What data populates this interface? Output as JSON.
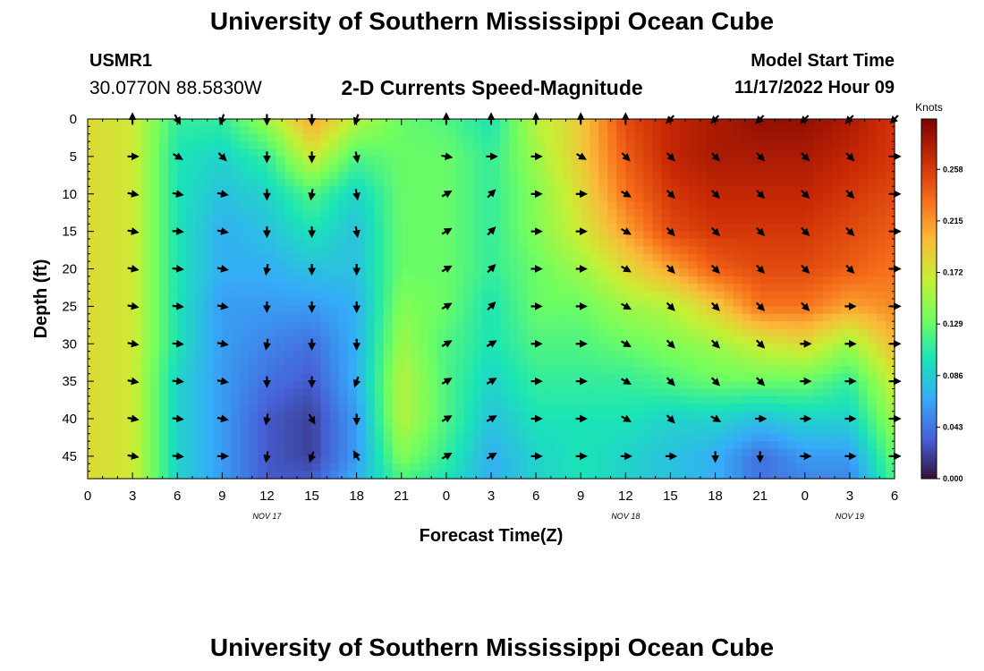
{
  "header": {
    "title": "University of Southern Mississippi Ocean Cube",
    "station": "USMR1",
    "coords": "30.0770N  88.5830W",
    "subtitle": "2-D Currents Speed-Magnitude",
    "model_label": "Model Start Time",
    "model_time": "11/17/2022 Hour 09"
  },
  "footer": {
    "title": "University of Southern Mississippi Ocean Cube"
  },
  "colors": {
    "scale": [
      "#30123b",
      "#4662d8",
      "#36aaf9",
      "#1ae4b6",
      "#72fe5e",
      "#c8ef34",
      "#faba39",
      "#f66b19",
      "#ca2a04",
      "#7a0403"
    ]
  },
  "chart_data": {
    "type": "heatmap",
    "xlabel": "Forecast Time(Z)",
    "ylabel": "Depth (ft)",
    "xlim": [
      0,
      54
    ],
    "ylim": [
      0,
      48
    ],
    "x_ticks": [
      0,
      3,
      6,
      9,
      12,
      15,
      18,
      21,
      24,
      27,
      30,
      33,
      36,
      39,
      42,
      45,
      48,
      51,
      54
    ],
    "x_tick_labels": [
      "0",
      "3",
      "6",
      "9",
      "12",
      "15",
      "18",
      "21",
      "0",
      "3",
      "6",
      "9",
      "12",
      "15",
      "18",
      "21",
      "0",
      "3",
      "6"
    ],
    "y_ticks": [
      0,
      5,
      10,
      15,
      20,
      25,
      30,
      35,
      40,
      45
    ],
    "y_tick_labels": [
      "0",
      "5",
      "10",
      "15",
      "20",
      "25",
      "30",
      "35",
      "40",
      "45"
    ],
    "date_labels": [
      {
        "x": 12,
        "label": "NOV 17"
      },
      {
        "x": 36,
        "label": "NOV 18"
      },
      {
        "x": 51,
        "label": "NOV 19"
      }
    ],
    "colorbar": {
      "unit": "Knots",
      "min": 0,
      "max": 0.3,
      "ticks": [
        0.0,
        0.043,
        0.086,
        0.129,
        0.172,
        0.215,
        0.258
      ],
      "tick_labels": [
        "0.000",
        "0.043",
        "0.086",
        "0.129",
        "0.172",
        "0.215",
        "0.258"
      ]
    },
    "times": [
      0,
      3,
      6,
      9,
      12,
      15,
      18,
      21,
      24,
      27,
      30,
      33,
      36,
      39,
      42,
      45,
      48,
      51,
      54
    ],
    "depths": [
      0,
      5,
      10,
      15,
      20,
      25,
      30,
      35,
      40,
      45,
      48
    ],
    "speed": [
      [
        0.18,
        0.17,
        0.11,
        0.11,
        0.15,
        0.21,
        0.16,
        0.13,
        0.12,
        0.1,
        0.16,
        0.19,
        0.25,
        0.27,
        0.28,
        0.29,
        0.29,
        0.28,
        0.26
      ],
      [
        0.18,
        0.17,
        0.1,
        0.09,
        0.11,
        0.17,
        0.12,
        0.13,
        0.13,
        0.11,
        0.15,
        0.19,
        0.24,
        0.27,
        0.28,
        0.28,
        0.28,
        0.27,
        0.26
      ],
      [
        0.18,
        0.17,
        0.1,
        0.08,
        0.09,
        0.12,
        0.09,
        0.13,
        0.13,
        0.11,
        0.14,
        0.18,
        0.23,
        0.26,
        0.27,
        0.27,
        0.27,
        0.26,
        0.25
      ],
      [
        0.18,
        0.17,
        0.1,
        0.07,
        0.08,
        0.1,
        0.08,
        0.13,
        0.13,
        0.11,
        0.14,
        0.17,
        0.21,
        0.25,
        0.26,
        0.26,
        0.26,
        0.25,
        0.24
      ],
      [
        0.18,
        0.17,
        0.1,
        0.07,
        0.07,
        0.08,
        0.08,
        0.13,
        0.13,
        0.11,
        0.13,
        0.15,
        0.18,
        0.21,
        0.24,
        0.25,
        0.25,
        0.24,
        0.23
      ],
      [
        0.18,
        0.17,
        0.1,
        0.06,
        0.06,
        0.06,
        0.07,
        0.14,
        0.13,
        0.1,
        0.13,
        0.13,
        0.15,
        0.16,
        0.19,
        0.23,
        0.23,
        0.21,
        0.22
      ],
      [
        0.18,
        0.17,
        0.1,
        0.06,
        0.05,
        0.04,
        0.07,
        0.15,
        0.12,
        0.1,
        0.12,
        0.12,
        0.13,
        0.14,
        0.15,
        0.17,
        0.18,
        0.15,
        0.2
      ],
      [
        0.18,
        0.17,
        0.09,
        0.06,
        0.04,
        0.03,
        0.07,
        0.16,
        0.12,
        0.09,
        0.11,
        0.11,
        0.11,
        0.12,
        0.13,
        0.13,
        0.13,
        0.11,
        0.17
      ],
      [
        0.18,
        0.17,
        0.09,
        0.06,
        0.03,
        0.02,
        0.06,
        0.16,
        0.12,
        0.08,
        0.1,
        0.1,
        0.1,
        0.09,
        0.09,
        0.08,
        0.09,
        0.09,
        0.15
      ],
      [
        0.18,
        0.17,
        0.09,
        0.06,
        0.03,
        0.02,
        0.06,
        0.14,
        0.11,
        0.07,
        0.09,
        0.1,
        0.09,
        0.08,
        0.07,
        0.04,
        0.06,
        0.06,
        0.13
      ],
      [
        0.18,
        0.17,
        0.09,
        0.06,
        0.03,
        0.03,
        0.07,
        0.12,
        0.1,
        0.07,
        0.09,
        0.1,
        0.09,
        0.08,
        0.07,
        0.04,
        0.05,
        0.05,
        0.12
      ]
    ],
    "arrow_times": [
      3,
      6,
      9,
      12,
      15,
      18,
      24,
      27,
      30,
      33,
      36,
      39,
      42,
      45,
      48,
      51,
      54
    ],
    "arrow_depths": [
      0,
      5,
      10,
      15,
      20,
      25,
      30,
      35,
      40,
      45
    ],
    "arrow_direction_deg": [
      [
        0,
        150,
        200,
        180,
        180,
        200,
        0,
        0,
        0,
        0,
        0,
        225,
        225,
        225,
        225,
        225,
        225
      ],
      [
        90,
        120,
        135,
        180,
        180,
        170,
        100,
        90,
        90,
        120,
        135,
        135,
        135,
        135,
        135,
        135,
        90
      ],
      [
        100,
        100,
        100,
        180,
        190,
        170,
        60,
        45,
        90,
        90,
        120,
        135,
        135,
        135,
        135,
        135,
        90
      ],
      [
        100,
        95,
        100,
        180,
        180,
        170,
        60,
        45,
        90,
        90,
        120,
        135,
        135,
        135,
        135,
        135,
        90
      ],
      [
        100,
        95,
        100,
        190,
        180,
        180,
        60,
        45,
        90,
        90,
        120,
        135,
        135,
        135,
        135,
        135,
        90
      ],
      [
        100,
        95,
        100,
        180,
        180,
        180,
        60,
        45,
        90,
        90,
        120,
        135,
        135,
        135,
        135,
        90,
        90
      ],
      [
        100,
        95,
        100,
        190,
        180,
        180,
        60,
        60,
        90,
        90,
        120,
        135,
        135,
        135,
        90,
        90,
        90
      ],
      [
        100,
        95,
        100,
        180,
        180,
        200,
        60,
        60,
        90,
        90,
        120,
        135,
        135,
        135,
        90,
        90,
        90
      ],
      [
        100,
        95,
        100,
        190,
        150,
        180,
        60,
        60,
        90,
        90,
        120,
        135,
        120,
        90,
        90,
        90,
        90
      ],
      [
        100,
        95,
        90,
        190,
        200,
        330,
        60,
        60,
        90,
        90,
        90,
        90,
        180,
        180,
        90,
        90,
        90
      ]
    ]
  }
}
